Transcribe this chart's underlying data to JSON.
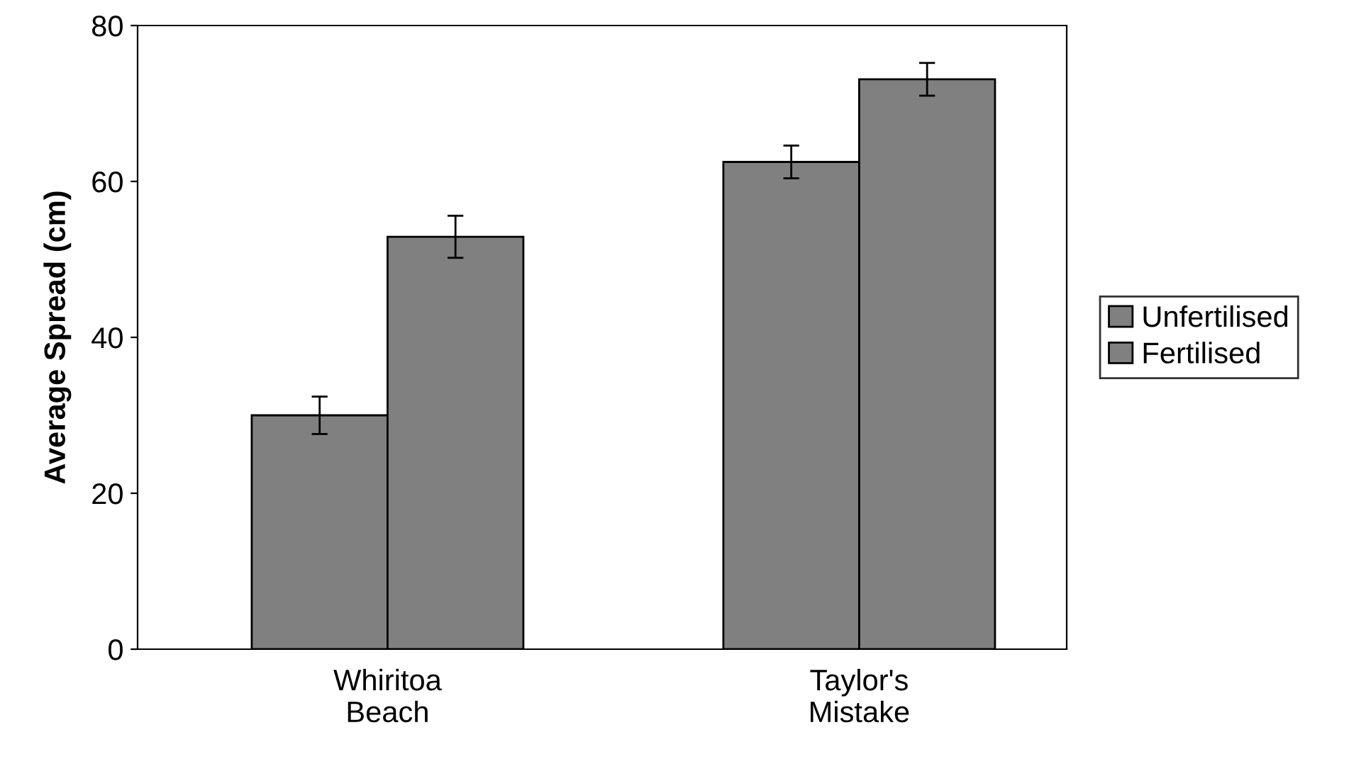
{
  "chart_data": {
    "type": "bar",
    "ylabel": "Average Spread (cm)",
    "categories": [
      "Whiritoa\nBeach",
      "Taylor's\nMistake"
    ],
    "series": [
      {
        "name": "Unfertilised",
        "color": "#808080",
        "values": [
          30.0,
          62.5
        ],
        "errors": [
          2.4,
          2.1
        ]
      },
      {
        "name": "Fertilised",
        "color": "#808080",
        "values": [
          52.9,
          73.1
        ],
        "errors": [
          2.7,
          2.1
        ]
      }
    ],
    "ylim": [
      0,
      80
    ],
    "yticks": [
      0,
      20,
      40,
      60,
      80
    ],
    "grid": false,
    "legend": "right"
  }
}
